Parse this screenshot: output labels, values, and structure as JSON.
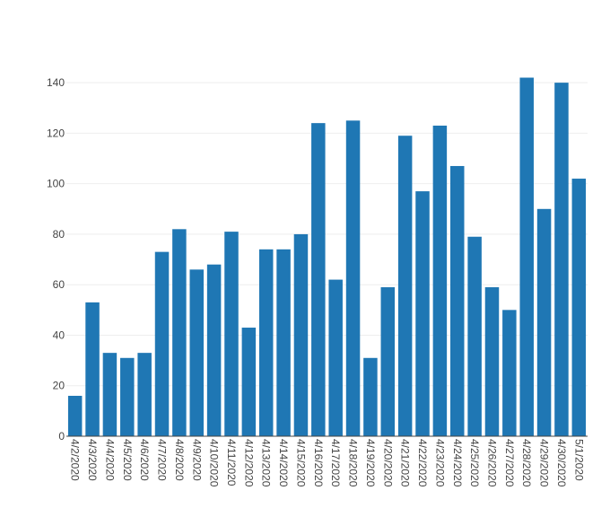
{
  "chart_data": {
    "type": "bar",
    "categories": [
      "4/2/2020",
      "4/3/2020",
      "4/4/2020",
      "4/5/2020",
      "4/6/2020",
      "4/7/2020",
      "4/8/2020",
      "4/9/2020",
      "4/10/2020",
      "4/11/2020",
      "4/12/2020",
      "4/13/2020",
      "4/14/2020",
      "4/15/2020",
      "4/16/2020",
      "4/17/2020",
      "4/18/2020",
      "4/19/2020",
      "4/20/2020",
      "4/21/2020",
      "4/22/2020",
      "4/23/2020",
      "4/24/2020",
      "4/25/2020",
      "4/26/2020",
      "4/27/2020",
      "4/28/2020",
      "4/29/2020",
      "4/30/2020",
      "5/1/2020"
    ],
    "values": [
      16,
      53,
      33,
      31,
      33,
      73,
      82,
      66,
      68,
      81,
      43,
      74,
      74,
      80,
      124,
      62,
      125,
      31,
      59,
      119,
      97,
      123,
      107,
      79,
      59,
      50,
      142,
      90,
      140,
      102
    ],
    "title": "",
    "xlabel": "",
    "ylabel": "",
    "ylim": [
      0,
      150
    ],
    "yticks": [
      0,
      20,
      40,
      60,
      80,
      100,
      120,
      140
    ],
    "grid": true,
    "bar_color": "#1f77b4"
  }
}
